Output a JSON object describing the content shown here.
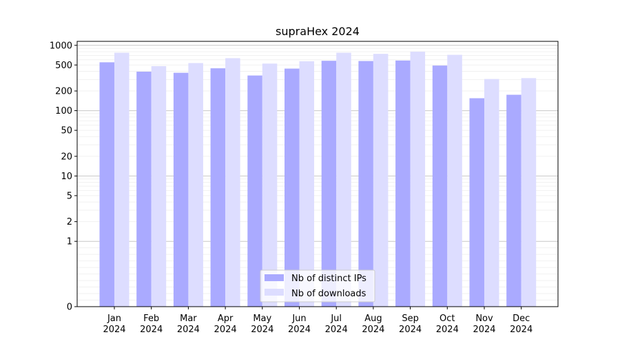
{
  "chart_data": {
    "type": "bar",
    "title": "supraHex 2024",
    "xlabel": "",
    "ylabel": "",
    "yscale": "symlog",
    "ylim": [
      0,
      1000
    ],
    "yticks": [
      0,
      1,
      2,
      5,
      10,
      20,
      50,
      100,
      200,
      500,
      1000
    ],
    "grid": true,
    "legend_position": "bottom-center",
    "categories": [
      "Jan\n2024",
      "Feb\n2024",
      "Mar\n2024",
      "Apr\n2024",
      "May\n2024",
      "Jun\n2024",
      "Jul\n2024",
      "Aug\n2024",
      "Sep\n2024",
      "Oct\n2024",
      "Nov\n2024",
      "Dec\n2024"
    ],
    "series": [
      {
        "name": "Nb of distinct IPs",
        "color": "#aaaaff",
        "values": [
          550,
          395,
          380,
          445,
          345,
          440,
          580,
          575,
          585,
          490,
          155,
          175
        ]
      },
      {
        "name": "Nb of downloads",
        "color": "#ddddff",
        "values": [
          770,
          480,
          535,
          635,
          525,
          570,
          770,
          740,
          800,
          715,
          305,
          315
        ]
      }
    ]
  }
}
